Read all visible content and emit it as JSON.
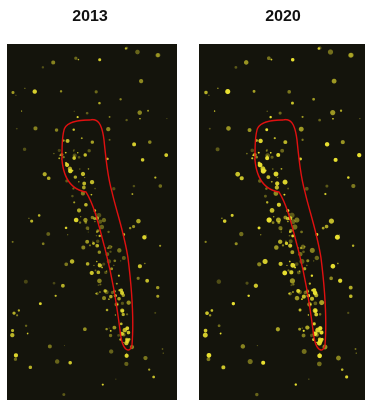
{
  "panels": [
    {
      "label": "2013"
    },
    {
      "label": "2020"
    }
  ]
}
